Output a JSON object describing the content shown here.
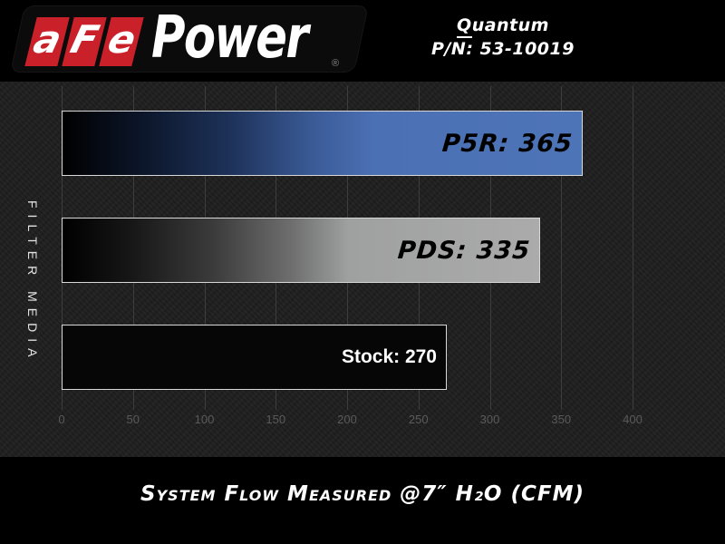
{
  "header": {
    "logo": {
      "letters": [
        "a",
        "F",
        "e"
      ],
      "brand": "Power",
      "registered": "®"
    },
    "product_line1_first": "Q",
    "product_line1_rest": "uantum",
    "product_line2": "P/N: 53-10019"
  },
  "chart_data": {
    "type": "bar",
    "orientation": "horizontal",
    "title": "System Flow Measured @7″ H₂O (CFM)",
    "xlabel": "System Flow Measured @7″ H₂O (CFM)",
    "ylabel": "FILTER MEDIA",
    "xlim": [
      0,
      400
    ],
    "xticks": [
      0,
      50,
      100,
      150,
      200,
      250,
      300,
      350,
      400
    ],
    "grid": true,
    "legend": "none",
    "categories": [
      "P5R",
      "PDS",
      "Stock"
    ],
    "values": [
      365,
      335,
      270
    ],
    "bars": [
      {
        "category": "P5R",
        "value": 365,
        "label": "P5R: 365",
        "fill": "blue-gradient",
        "label_style": "dark-italic"
      },
      {
        "category": "PDS",
        "value": 335,
        "label": "PDS: 335",
        "fill": "gray-gradient",
        "label_style": "dark-italic"
      },
      {
        "category": "Stock",
        "value": 270,
        "label": "Stock: 270",
        "fill": "solid-black",
        "label_style": "white-bold"
      }
    ],
    "colors": {
      "blue_bar_end": "#4e74b8",
      "gray_bar_end": "#ababab",
      "bar_border": "#d8d8d8",
      "grid_line": "#3d3d3d",
      "tick_text": "#5a5a5a",
      "plot_background": "#1e1e1e",
      "page_background": "#000000",
      "logo_red": "#c9202a",
      "text_white": "#ffffff"
    }
  }
}
